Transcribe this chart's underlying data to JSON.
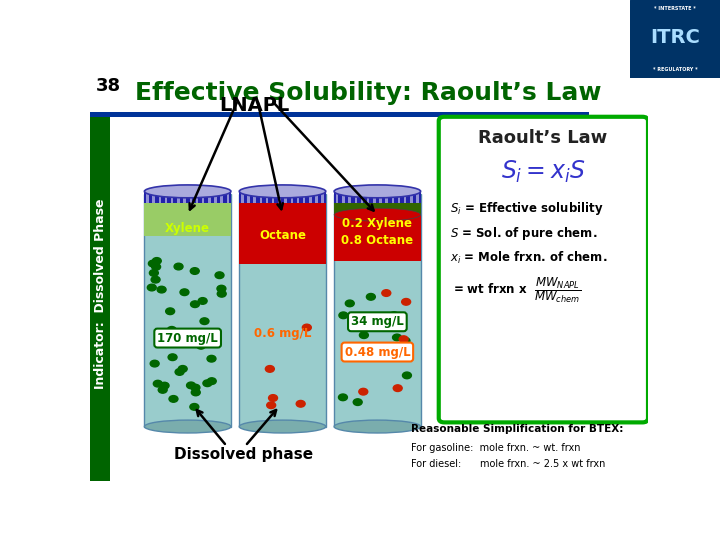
{
  "slide_number": "38",
  "title": "Effective Solubility: Raoult’s Law",
  "title_color": "#006400",
  "background_color": "#ffffff",
  "header_bar_color": "#003399",
  "left_bar_color": "#006400",
  "lnapl_label": "LNAPL",
  "indicator_label": "Indicator:  Dissolved Phase",
  "dissolved_label": "Dissolved phase",
  "raoult_box_border": "#00aa00",
  "raoult_title": "Raoult’s Law",
  "simplification_title": "Reasonable Simplification for BTEX:",
  "simplification_lines": [
    "For gasoline:  mole frxn. ~ wt. frxn",
    "For diesel:      mole frxn. ~ 2.5 x wt frxn"
  ]
}
